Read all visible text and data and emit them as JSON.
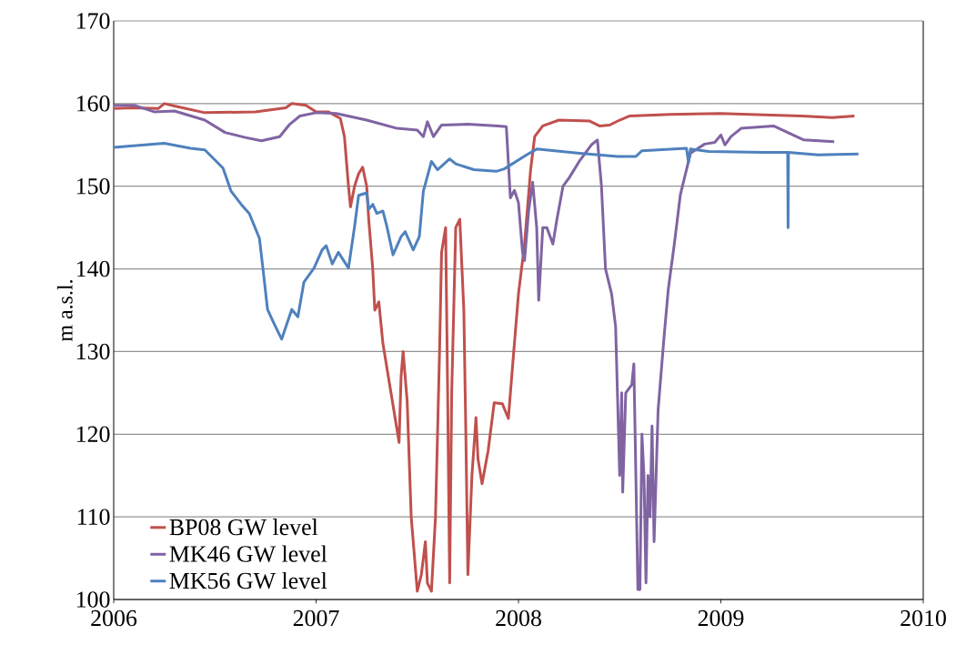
{
  "chart_data": {
    "type": "line",
    "ylabel": "m a.s.l.",
    "xlim": [
      2006,
      2010
    ],
    "xticks": [
      2006,
      2007,
      2008,
      2009,
      2010
    ],
    "ylim": [
      100,
      170
    ],
    "yticks": [
      100,
      110,
      120,
      130,
      140,
      150,
      160,
      170
    ],
    "grid": "y",
    "legend": "bottom left",
    "series": [
      {
        "name": "BP08 GW level",
        "color": "#c0504d",
        "x": [
          2006.0,
          2006.1,
          2006.22,
          2006.25,
          2006.3,
          2006.45,
          2006.7,
          2006.85,
          2006.88,
          2006.95,
          2007.0,
          2007.06,
          2007.12,
          2007.14,
          2007.16,
          2007.17,
          2007.19,
          2007.21,
          2007.23,
          2007.25,
          2007.26,
          2007.28,
          2007.29,
          2007.31,
          2007.33,
          2007.35,
          2007.37,
          2007.39,
          2007.41,
          2007.42,
          2007.43,
          2007.45,
          2007.47,
          2007.48,
          2007.5,
          2007.52,
          2007.54,
          2007.55,
          2007.57,
          2007.59,
          2007.61,
          2007.62,
          2007.64,
          2007.65,
          2007.66,
          2007.67,
          2007.69,
          2007.71,
          2007.73,
          2007.74,
          2007.75,
          2007.77,
          2007.79,
          2007.8,
          2007.82,
          2007.85,
          2007.88,
          2007.92,
          2007.95,
          2007.97,
          2008.0,
          2008.03,
          2008.06,
          2008.08,
          2008.12,
          2008.2,
          2008.35,
          2008.4,
          2008.45,
          2008.5,
          2008.55,
          2008.75,
          2009.0,
          2009.25,
          2009.4,
          2009.55,
          2009.66
        ],
        "values": [
          159.4,
          159.5,
          159.4,
          160.0,
          159.7,
          158.9,
          159.0,
          159.5,
          160.0,
          159.8,
          159.0,
          159.0,
          158.2,
          156,
          150,
          147.5,
          150,
          151.5,
          152.3,
          150,
          146,
          140,
          135,
          136,
          131,
          128,
          125,
          122,
          119,
          127,
          130,
          124,
          110,
          107,
          101,
          103,
          107,
          102,
          101,
          110,
          130,
          142,
          145,
          125,
          102,
          125,
          145,
          146,
          135,
          120,
          103,
          115,
          122,
          117,
          114,
          118,
          123.8,
          123.7,
          121.9,
          128,
          137,
          143,
          152,
          156,
          157.3,
          158,
          157.9,
          157.3,
          157.4,
          158,
          158.5,
          158.7,
          158.8,
          158.6,
          158.5,
          158.3,
          158.5
        ]
      },
      {
        "name": "MK46 GW level",
        "color": "#8064a2",
        "x": [
          2006.0,
          2006.1,
          2006.2,
          2006.3,
          2006.45,
          2006.55,
          2006.65,
          2006.73,
          2006.82,
          2006.87,
          2006.92,
          2007.0,
          2007.1,
          2007.25,
          2007.4,
          2007.5,
          2007.53,
          2007.55,
          2007.58,
          2007.62,
          2007.75,
          2007.9,
          2007.94,
          2007.96,
          2007.98,
          2008.0,
          2008.02,
          2008.03,
          2008.05,
          2008.07,
          2008.09,
          2008.1,
          2008.12,
          2008.14,
          2008.17,
          2008.19,
          2008.22,
          2008.25,
          2008.3,
          2008.36,
          2008.39,
          2008.41,
          2008.43,
          2008.46,
          2008.48,
          2008.49,
          2008.5,
          2008.51,
          2008.515,
          2008.53,
          2008.56,
          2008.57,
          2008.58,
          2008.59,
          2008.6,
          2008.61,
          2008.62,
          2008.63,
          2008.64,
          2008.65,
          2008.66,
          2008.67,
          2008.68,
          2008.69,
          2008.72,
          2008.74,
          2008.77,
          2008.8,
          2008.85,
          2008.92,
          2008.97,
          2009.0,
          2009.02,
          2009.05,
          2009.1,
          2009.26,
          2009.41,
          2009.56
        ],
        "values": [
          159.8,
          159.8,
          159.0,
          159.1,
          158.0,
          156.5,
          155.9,
          155.5,
          156.0,
          157.5,
          158.5,
          158.9,
          158.8,
          158.0,
          157.0,
          156.8,
          156,
          157.8,
          156.0,
          157.4,
          157.5,
          157.3,
          157.2,
          148.6,
          149.5,
          148,
          142,
          141,
          147,
          150.5,
          145,
          136.2,
          145,
          145,
          143,
          146,
          150,
          151,
          153,
          155,
          155.6,
          150,
          140,
          137,
          133,
          124,
          115,
          125,
          113,
          125,
          126,
          128.5,
          115,
          101.2,
          101.2,
          120,
          115,
          102,
          115,
          110,
          121,
          107,
          115,
          123,
          132,
          137.5,
          143,
          149,
          154,
          155.1,
          155.3,
          156.2,
          155,
          156,
          157,
          157.3,
          155.6,
          155.4
        ]
      },
      {
        "name": "MK56 GW level",
        "color": "#4f81bd",
        "x": [
          2006.0,
          2006.25,
          2006.38,
          2006.45,
          2006.54,
          2006.58,
          2006.63,
          2006.67,
          2006.72,
          2006.74,
          2006.76,
          2006.79,
          2006.83,
          2006.88,
          2006.91,
          2006.94,
          2006.99,
          2007.03,
          2007.05,
          2007.08,
          2007.11,
          2007.16,
          2007.19,
          2007.21,
          2007.25,
          2007.26,
          2007.28,
          2007.3,
          2007.33,
          2007.35,
          2007.38,
          2007.42,
          2007.44,
          2007.48,
          2007.51,
          2007.53,
          2007.57,
          2007.6,
          2007.66,
          2007.69,
          2007.78,
          2007.89,
          2007.93,
          2008.04,
          2008.09,
          2008.29,
          2008.49,
          2008.58,
          2008.61,
          2008.83,
          2008.84,
          2008.85,
          2008.94,
          2009.21,
          2009.33,
          2009.332,
          2009.334,
          2009.48,
          2009.68
        ],
        "values": [
          154.7,
          155.2,
          154.6,
          154.4,
          152.2,
          149.4,
          147.8,
          146.7,
          143.7,
          139.5,
          135.1,
          133.5,
          131.5,
          135.1,
          134.2,
          138.4,
          140.1,
          142.3,
          142.8,
          140.6,
          142.0,
          140.1,
          145.1,
          148.9,
          149.2,
          147.2,
          147.8,
          146.7,
          147.0,
          145.1,
          141.7,
          143.9,
          144.5,
          142.3,
          143.9,
          149.4,
          153.0,
          152.0,
          153.3,
          152.7,
          152.0,
          151.8,
          152.1,
          153.8,
          154.5,
          154.0,
          153.6,
          153.6,
          154.3,
          154.6,
          152.9,
          154.5,
          154.2,
          154.1,
          154.1,
          145.0,
          154.1,
          153.8,
          153.9
        ]
      }
    ]
  }
}
